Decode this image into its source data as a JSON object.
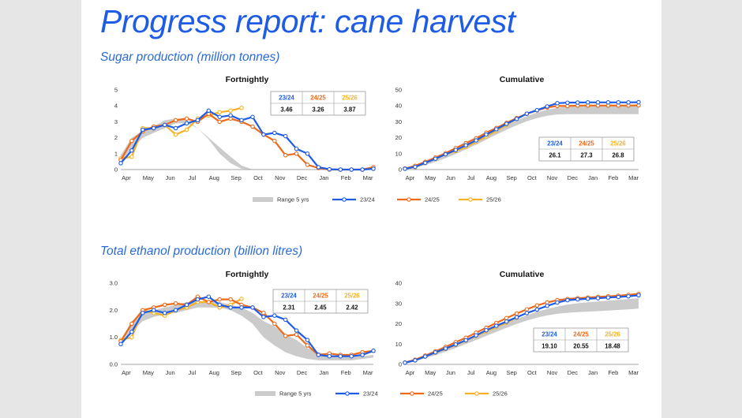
{
  "page": {
    "title": "Progress report:  cane harvest",
    "sections": [
      {
        "title": "Sugar production (million  tonnes)"
      },
      {
        "title": "Total ethanol production (billion litres)"
      }
    ],
    "legend": [
      "Range 5 yrs",
      "23/24",
      "24/25",
      "25/26"
    ]
  },
  "colors": {
    "s2324": "#1f5ce6",
    "s2425": "#ec6a1a",
    "s2526": "#f5b225",
    "range": "#cbcbcb"
  },
  "chart_data": [
    {
      "id": "sugar-fortnightly",
      "type": "line",
      "title": "Fortnightly",
      "months": [
        "Apr",
        "May",
        "Jun",
        "Jul",
        "Aug",
        "Sep",
        "Oct",
        "Nov",
        "Dec",
        "Jan",
        "Feb",
        "Mar"
      ],
      "ylim": [
        0,
        5
      ],
      "yticks": [
        0,
        1,
        2,
        3,
        4,
        5
      ],
      "ytick_labels": [
        "0",
        "1",
        "2",
        "3",
        "4",
        "5"
      ],
      "range_band": {
        "upper": [
          0.9,
          2.0,
          2.4,
          2.7,
          3.1,
          3.2,
          3.1,
          2.6,
          2.0,
          1.4,
          0.8,
          0.25,
          0.0,
          0.0,
          0.0,
          0.0,
          0.0,
          0.0,
          0.0,
          0.0,
          0.0,
          0.0,
          0.0,
          0.0
        ],
        "lower": [
          0.5,
          1.3,
          2.0,
          2.3,
          2.6,
          2.9,
          2.9,
          2.6,
          1.9,
          1.0,
          0.4,
          0.05,
          0.0,
          0.0,
          0.0,
          0.0,
          0.0,
          0.0,
          0.0,
          0.0,
          0.0,
          0.0,
          0.0,
          0.0
        ]
      },
      "series": [
        {
          "name": "23/24",
          "color": "#1f5ce6",
          "values": [
            0.4,
            1.2,
            2.5,
            2.6,
            2.8,
            2.6,
            2.9,
            3.1,
            3.7,
            3.3,
            3.4,
            3.1,
            3.3,
            2.2,
            2.3,
            2.1,
            1.3,
            1.0,
            0.15,
            0.02,
            0.0,
            0.0,
            0.0,
            0.05
          ]
        },
        {
          "name": "24/25",
          "color": "#ec6a1a",
          "values": [
            0.6,
            1.8,
            2.4,
            2.7,
            2.8,
            3.1,
            3.2,
            3.0,
            3.5,
            3.0,
            3.2,
            3.0,
            2.7,
            2.2,
            1.8,
            0.9,
            1.0,
            0.3,
            0.1,
            0.0,
            0.0,
            0.0,
            0.0,
            0.15
          ]
        },
        {
          "name": "25/26",
          "color": "#f5b225",
          "values": [
            0.7,
            0.8,
            2.6,
            2.6,
            2.8,
            2.2,
            2.5,
            3.2,
            3.4,
            3.6,
            3.7,
            3.87
          ]
        }
      ],
      "table": {
        "headers": [
          "23/24",
          "24/25",
          "25/26"
        ],
        "values": [
          "3.46",
          "3.26",
          "3.87"
        ]
      }
    },
    {
      "id": "sugar-cumulative",
      "type": "line",
      "title": "Cumulative",
      "months": [
        "Apr",
        "May",
        "Jun",
        "Jul",
        "Aug",
        "Sep",
        "Oct",
        "Nov",
        "Dec",
        "Jan",
        "Feb",
        "Mar"
      ],
      "ylim": [
        0,
        50
      ],
      "yticks": [
        0,
        10,
        20,
        30,
        40,
        50
      ],
      "ytick_labels": [
        "0",
        "10",
        "20",
        "30",
        "40",
        "50"
      ],
      "range_band": {
        "upper": [
          0.5,
          1.8,
          3.8,
          6.2,
          8.8,
          11.5,
          14.5,
          17.8,
          21.2,
          24.5,
          27.8,
          30.8,
          33.5,
          35.8,
          37.6,
          38.8,
          39.5,
          39.8,
          39.9,
          40.0,
          40.0,
          40.0,
          40.0,
          40.0
        ],
        "lower": [
          0.3,
          1.2,
          2.8,
          4.8,
          7.2,
          9.8,
          12.6,
          15.6,
          18.8,
          22.0,
          25.0,
          27.8,
          30.3,
          32.3,
          33.8,
          34.6,
          34.8,
          34.8,
          34.8,
          34.8,
          34.8,
          34.8,
          34.8,
          34.8
        ]
      },
      "series": [
        {
          "name": "23/24",
          "color": "#1f5ce6",
          "values": [
            0.5,
            1.7,
            4.2,
            6.8,
            9.6,
            12.3,
            15.2,
            18.3,
            22.0,
            25.3,
            28.7,
            31.8,
            35.1,
            37.3,
            39.6,
            41.7,
            42.0,
            42.1,
            42.2,
            42.2,
            42.2,
            42.2,
            42.2,
            42.3
          ]
        },
        {
          "name": "24/25",
          "color": "#ec6a1a",
          "values": [
            0.6,
            2.4,
            4.8,
            7.5,
            10.3,
            13.4,
            16.6,
            19.6,
            23.1,
            26.1,
            29.3,
            32.3,
            35.0,
            37.2,
            39.0,
            39.9,
            39.9,
            40.2,
            40.2,
            40.2,
            40.2,
            40.2,
            40.2,
            40.3
          ]
        },
        {
          "name": "25/26",
          "color": "#f5b225",
          "values": [
            0.7,
            1.5,
            4.1,
            6.7,
            9.5,
            11.7,
            14.2,
            17.4,
            20.8,
            24.4,
            28.1,
            31.9
          ]
        }
      ],
      "table": {
        "headers": [
          "23/24",
          "24/25",
          "25/26"
        ],
        "values": [
          "26.1",
          "27.3",
          "26.8"
        ]
      }
    },
    {
      "id": "ethanol-fortnightly",
      "type": "line",
      "title": "Fortnightly",
      "months": [
        "Apr",
        "May",
        "Jun",
        "Jul",
        "Aug",
        "Sep",
        "Oct",
        "Nov",
        "Dec",
        "Jan",
        "Feb",
        "Mar"
      ],
      "ylim": [
        0,
        3
      ],
      "yticks": [
        0,
        1,
        2,
        3
      ],
      "ytick_labels": [
        "0.0",
        "1.0",
        "2.0",
        "3.0"
      ],
      "range_band": {
        "upper": [
          0.9,
          1.6,
          1.9,
          2.0,
          2.1,
          2.2,
          2.3,
          2.3,
          2.3,
          2.3,
          2.2,
          2.1,
          1.9,
          1.6,
          1.4,
          1.1,
          0.9,
          0.6,
          0.45,
          0.35,
          0.3,
          0.3,
          0.3,
          0.35
        ],
        "lower": [
          0.7,
          1.2,
          1.6,
          1.75,
          1.85,
          1.9,
          2.0,
          2.1,
          2.1,
          2.1,
          2.0,
          1.8,
          1.5,
          1.0,
          0.7,
          0.45,
          0.3,
          0.2,
          0.15,
          0.15,
          0.15,
          0.15,
          0.2,
          0.25
        ]
      },
      "series": [
        {
          "name": "23/24",
          "color": "#1f5ce6",
          "values": [
            0.75,
            1.2,
            1.9,
            2.0,
            1.9,
            2.0,
            2.2,
            2.4,
            2.5,
            2.2,
            2.1,
            2.1,
            2.1,
            1.75,
            1.8,
            1.65,
            1.25,
            0.9,
            0.35,
            0.3,
            0.3,
            0.3,
            0.35,
            0.5
          ]
        },
        {
          "name": "24/25",
          "color": "#ec6a1a",
          "values": [
            0.85,
            1.5,
            2.0,
            2.1,
            2.2,
            2.25,
            2.2,
            2.5,
            2.3,
            2.4,
            2.4,
            2.2,
            2.1,
            1.9,
            1.5,
            1.05,
            1.1,
            0.7,
            0.35,
            0.4,
            0.35,
            0.35,
            0.45,
            0.5
          ]
        },
        {
          "name": "25/26",
          "color": "#f5b225",
          "values": [
            0.9,
            1.0,
            2.0,
            1.9,
            1.8,
            2.0,
            2.1,
            2.3,
            2.3,
            2.1,
            2.2,
            2.42
          ]
        }
      ],
      "table": {
        "headers": [
          "23/24",
          "24/25",
          "25/26"
        ],
        "values": [
          "2.31",
          "2.45",
          "2.42"
        ]
      }
    },
    {
      "id": "ethanol-cumulative",
      "type": "line",
      "title": "Cumulative",
      "months": [
        "Apr",
        "May",
        "Jun",
        "Jul",
        "Aug",
        "Sep",
        "Oct",
        "Nov",
        "Dec",
        "Jan",
        "Feb",
        "Mar"
      ],
      "ylim": [
        0,
        40
      ],
      "yticks": [
        0,
        10,
        20,
        30,
        40
      ],
      "ytick_labels": [
        "0",
        "10",
        "20",
        "30",
        "40"
      ],
      "range_band": {
        "upper": [
          0.8,
          2.2,
          3.8,
          5.6,
          7.5,
          9.5,
          11.6,
          13.8,
          16.0,
          18.2,
          20.3,
          22.3,
          24.2,
          25.9,
          27.3,
          28.5,
          29.4,
          30.1,
          30.6,
          31.0,
          31.4,
          31.8,
          32.2,
          32.6
        ],
        "lower": [
          0.5,
          1.6,
          3.0,
          4.6,
          6.3,
          8.1,
          10.0,
          12.0,
          14.0,
          16.0,
          18.0,
          19.9,
          21.6,
          23.0,
          24.1,
          24.9,
          25.4,
          25.7,
          26.0,
          26.2,
          26.5,
          26.8,
          27.1,
          27.5
        ]
      },
      "series": [
        {
          "name": "23/24",
          "color": "#1f5ce6",
          "values": [
            0.8,
            2.0,
            3.9,
            5.9,
            7.8,
            9.8,
            11.9,
            14.3,
            16.8,
            19.0,
            21.1,
            23.2,
            25.3,
            27.0,
            28.8,
            30.4,
            31.6,
            32.0,
            32.3,
            32.6,
            32.9,
            33.2,
            33.5,
            34.0
          ]
        },
        {
          "name": "24/25",
          "color": "#ec6a1a",
          "values": [
            0.9,
            2.3,
            4.3,
            6.4,
            8.6,
            10.9,
            13.1,
            15.6,
            18.0,
            20.4,
            22.8,
            25.0,
            27.1,
            29.0,
            30.5,
            31.6,
            32.2,
            32.6,
            32.9,
            33.2,
            33.5,
            33.8,
            34.2,
            34.7
          ]
        },
        {
          "name": "25/26",
          "color": "#f5b225",
          "values": [
            0.9,
            1.9,
            3.9,
            5.8,
            7.6,
            9.6,
            11.7,
            14.0,
            16.3,
            18.4,
            20.6,
            23.0
          ]
        }
      ],
      "table": {
        "headers": [
          "23/24",
          "24/25",
          "25/26"
        ],
        "values": [
          "19.10",
          "20.55",
          "18.48"
        ]
      }
    }
  ]
}
